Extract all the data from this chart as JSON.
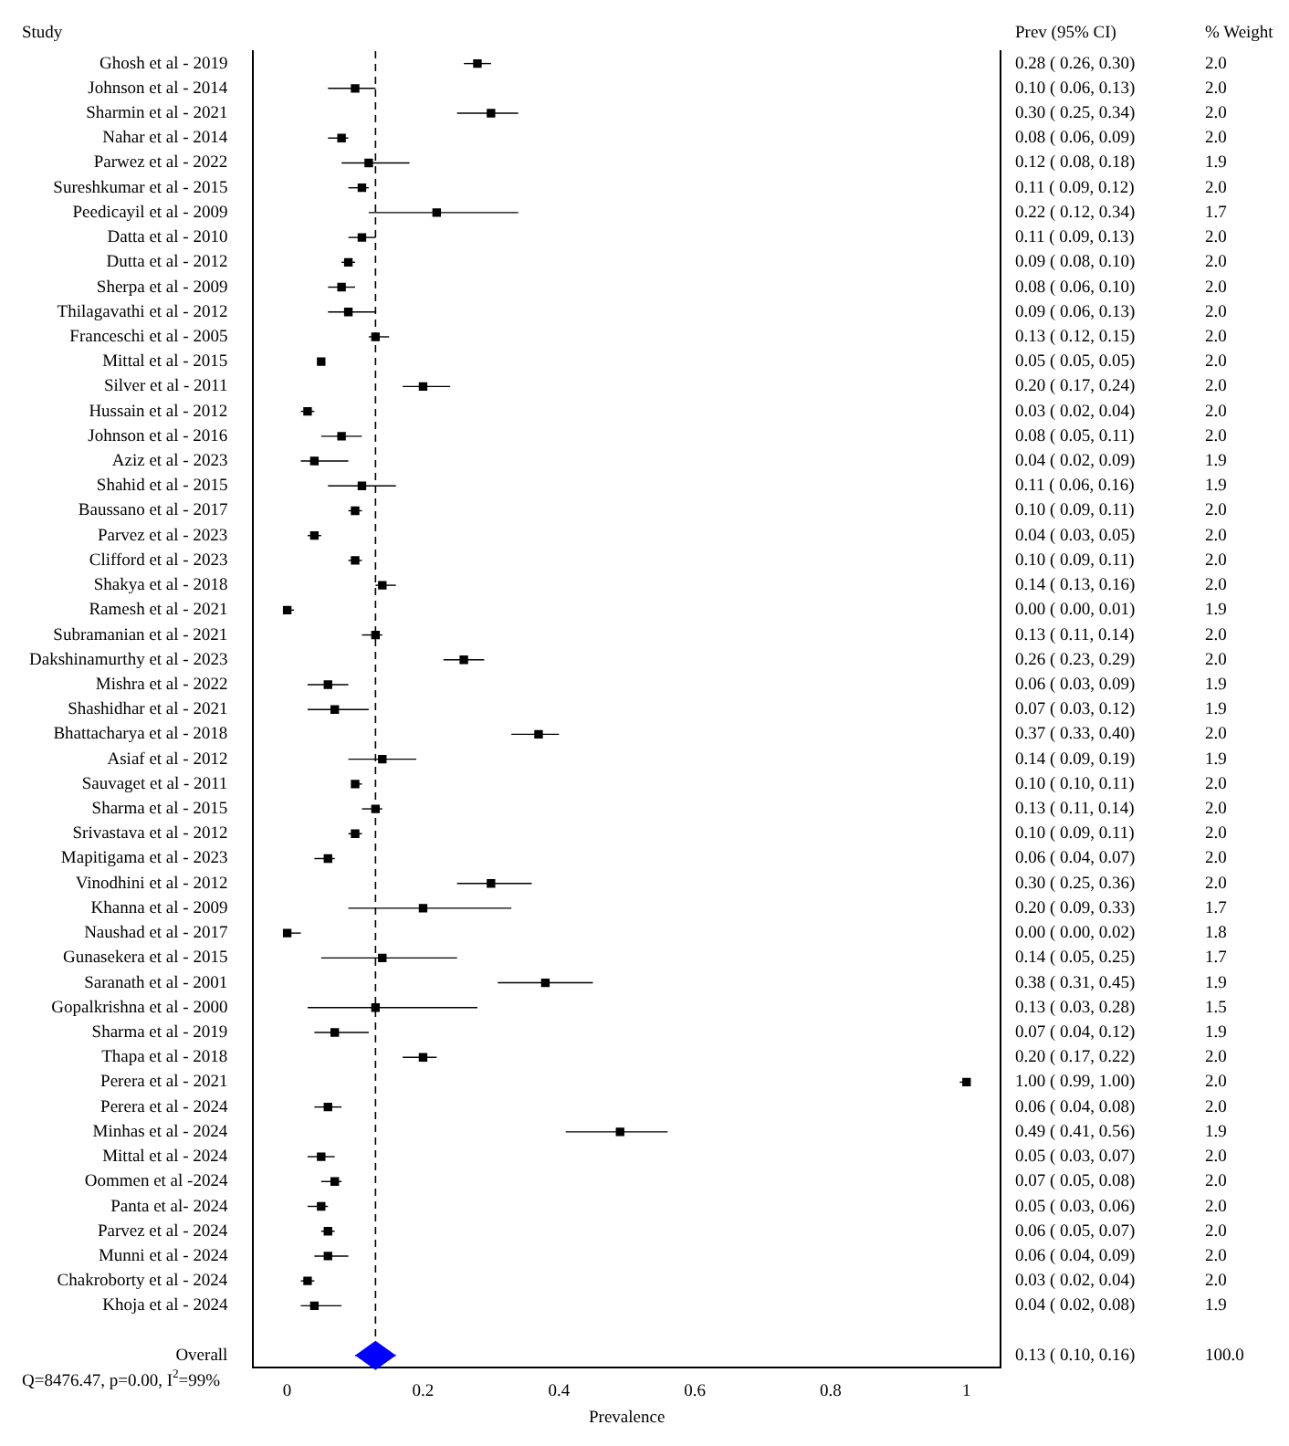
{
  "chart_data": {
    "type": "scatter",
    "orientation": "horizontal",
    "xlabel": "Prevalence",
    "ylabel": "Study",
    "categories": [
      "Ghosh et al - 2019",
      "Johnson et al - 2014",
      "Sharmin et al - 2021",
      "Nahar et al - 2014",
      "Parwez et al - 2022",
      "Sureshkumar et al - 2015",
      "Peedicayil et al - 2009",
      "Datta et al - 2010",
      "Dutta et al - 2012",
      "Sherpa et al - 2009",
      "Thilagavathi et al - 2012",
      "Franceschi et al - 2005",
      "Mittal et al - 2015",
      "Silver et al - 2011",
      "Hussain et al - 2012",
      "Johnson et al - 2016",
      "Aziz et al - 2023",
      "Shahid et al - 2015",
      "Baussano et al - 2017",
      "Parvez et al - 2023",
      "Clifford et al - 2023",
      "Shakya et al - 2018",
      "Ramesh et al - 2021",
      "Subramanian et al - 2021",
      "Dakshinamurthy et al - 2023",
      "Mishra et al - 2022",
      "Shashidhar et al - 2021",
      "Bhattacharya et al - 2018",
      "Asiaf et al - 2012",
      "Sauvaget et al - 2011",
      "Sharma et al - 2015",
      "Srivastava et al - 2012",
      "Mapitigama et al - 2023",
      "Vinodhini et al - 2012",
      "Khanna et al - 2009",
      "Naushad et al - 2017",
      "Gunasekera et al - 2015",
      "Saranath et al - 2001",
      "Gopalkrishna et al - 2000",
      "Sharma et al - 2019",
      "Thapa et al - 2018",
      "Perera et al - 2021",
      "Perera et al - 2024",
      "Minhas et al - 2024",
      "Mittal et al - 2024",
      "Oommen et al -2024",
      "Panta et al- 2024",
      "Parvez et al - 2024",
      "Munni et al - 2024",
      "Chakroborty et al - 2024",
      "Khoja et al - 2024",
      null,
      "Overall"
    ],
    "series": [
      {
        "name": "Prev (95% CI)",
        "color": "#000000",
        "marker": "square",
        "values": [
          0.28,
          0.1,
          0.3,
          0.08,
          0.12,
          0.11,
          0.22,
          0.11,
          0.09,
          0.08,
          0.09,
          0.13,
          0.05,
          0.2,
          0.03,
          0.08,
          0.04,
          0.11,
          0.1,
          0.04,
          0.1,
          0.14,
          0.0,
          0.13,
          0.26,
          0.06,
          0.07,
          0.37,
          0.14,
          0.1,
          0.13,
          0.1,
          0.06,
          0.3,
          0.2,
          0.0,
          0.14,
          0.38,
          0.13,
          0.07,
          0.2,
          1.0,
          0.06,
          0.49,
          0.05,
          0.07,
          0.05,
          0.06,
          0.06,
          0.03,
          0.04,
          null,
          null
        ],
        "errors": [
          [
            0.26,
            0.3
          ],
          [
            0.06,
            0.13
          ],
          [
            0.25,
            0.34
          ],
          [
            0.06,
            0.09
          ],
          [
            0.08,
            0.18
          ],
          [
            0.09,
            0.12
          ],
          [
            0.12,
            0.34
          ],
          [
            0.09,
            0.13
          ],
          [
            0.08,
            0.1
          ],
          [
            0.06,
            0.1
          ],
          [
            0.06,
            0.13
          ],
          [
            0.12,
            0.15
          ],
          [
            0.05,
            0.05
          ],
          [
            0.17,
            0.24
          ],
          [
            0.02,
            0.04
          ],
          [
            0.05,
            0.11
          ],
          [
            0.02,
            0.09
          ],
          [
            0.06,
            0.16
          ],
          [
            0.09,
            0.11
          ],
          [
            0.03,
            0.05
          ],
          [
            0.09,
            0.11
          ],
          [
            0.13,
            0.16
          ],
          [
            0.0,
            0.01
          ],
          [
            0.11,
            0.14
          ],
          [
            0.23,
            0.29
          ],
          [
            0.03,
            0.09
          ],
          [
            0.03,
            0.12
          ],
          [
            0.33,
            0.4
          ],
          [
            0.09,
            0.19
          ],
          [
            0.1,
            0.11
          ],
          [
            0.11,
            0.14
          ],
          [
            0.09,
            0.11
          ],
          [
            0.04,
            0.07
          ],
          [
            0.25,
            0.36
          ],
          [
            0.09,
            0.33
          ],
          [
            0.0,
            0.02
          ],
          [
            0.05,
            0.25
          ],
          [
            0.31,
            0.45
          ],
          [
            0.03,
            0.28
          ],
          [
            0.04,
            0.12
          ],
          [
            0.17,
            0.22
          ],
          [
            0.99,
            1.0
          ],
          [
            0.04,
            0.08
          ],
          [
            0.41,
            0.56
          ],
          [
            0.03,
            0.07
          ],
          [
            0.05,
            0.08
          ],
          [
            0.03,
            0.06
          ],
          [
            0.05,
            0.07
          ],
          [
            0.04,
            0.09
          ],
          [
            0.02,
            0.04
          ],
          [
            0.02,
            0.08
          ],
          null,
          null
        ],
        "value_labels": [
          "0.28 ( 0.26, 0.30)",
          "0.10 ( 0.06, 0.13)",
          "0.30 ( 0.25, 0.34)",
          "0.08 ( 0.06, 0.09)",
          "0.12 ( 0.08, 0.18)",
          "0.11 ( 0.09, 0.12)",
          "0.22 ( 0.12, 0.34)",
          "0.11 ( 0.09, 0.13)",
          "0.09 ( 0.08, 0.10)",
          "0.08 ( 0.06, 0.10)",
          "0.09 ( 0.06, 0.13)",
          "0.13 ( 0.12, 0.15)",
          "0.05 ( 0.05, 0.05)",
          "0.20 ( 0.17, 0.24)",
          "0.03 ( 0.02, 0.04)",
          "0.08 ( 0.05, 0.11)",
          "0.04 ( 0.02, 0.09)",
          "0.11 ( 0.06, 0.16)",
          "0.10 ( 0.09, 0.11)",
          "0.04 ( 0.03, 0.05)",
          "0.10 ( 0.09, 0.11)",
          "0.14 ( 0.13, 0.16)",
          "0.00 ( 0.00, 0.01)",
          "0.13 ( 0.11, 0.14)",
          "0.26 ( 0.23, 0.29)",
          "0.06 ( 0.03, 0.09)",
          "0.07 ( 0.03, 0.12)",
          "0.37 ( 0.33, 0.40)",
          "0.14 ( 0.09, 0.19)",
          "0.10 ( 0.10, 0.11)",
          "0.13 ( 0.11, 0.14)",
          "0.10 ( 0.09, 0.11)",
          "0.06 ( 0.04, 0.07)",
          "0.30 ( 0.25, 0.36)",
          "0.20 ( 0.09, 0.33)",
          "0.00 ( 0.00, 0.02)",
          "0.14 ( 0.05, 0.25)",
          "0.38 ( 0.31, 0.45)",
          "0.13 ( 0.03, 0.28)",
          "0.07 ( 0.04, 0.12)",
          "0.20 ( 0.17, 0.22)",
          "1.00 ( 0.99, 1.00)",
          "0.06 ( 0.04, 0.08)",
          "0.49 ( 0.41, 0.56)",
          "0.05 ( 0.03, 0.07)",
          "0.07 ( 0.05, 0.08)",
          "0.05 ( 0.03, 0.06)",
          "0.06 ( 0.05, 0.07)",
          "0.06 ( 0.04, 0.09)",
          "0.03 ( 0.02, 0.04)",
          "0.04 ( 0.02, 0.08)",
          null,
          "0.13 ( 0.10, 0.16)"
        ]
      },
      {
        "color": "#0000ff",
        "marker": "diamond",
        "values": [
          null,
          null,
          null,
          null,
          null,
          null,
          null,
          null,
          null,
          null,
          null,
          null,
          null,
          null,
          null,
          null,
          null,
          null,
          null,
          null,
          null,
          null,
          null,
          null,
          null,
          null,
          null,
          null,
          null,
          null,
          null,
          null,
          null,
          null,
          null,
          null,
          null,
          null,
          null,
          null,
          null,
          null,
          null,
          null,
          null,
          null,
          null,
          null,
          null,
          null,
          null,
          null,
          0.13
        ],
        "errors": [
          null,
          null,
          null,
          null,
          null,
          null,
          null,
          null,
          null,
          null,
          null,
          null,
          null,
          null,
          null,
          null,
          null,
          null,
          null,
          null,
          null,
          null,
          null,
          null,
          null,
          null,
          null,
          null,
          null,
          null,
          null,
          null,
          null,
          null,
          null,
          null,
          null,
          null,
          null,
          null,
          null,
          null,
          null,
          null,
          null,
          null,
          null,
          null,
          null,
          null,
          null,
          null,
          [
            0.1,
            0.16
          ]
        ]
      },
      {
        "type": "other",
        "name": "% Weight",
        "values": [
          null,
          null,
          null,
          null,
          null,
          null,
          null,
          null,
          null,
          null,
          null,
          null,
          null,
          null,
          null,
          null,
          null,
          null,
          null,
          null,
          null,
          null,
          null,
          null,
          null,
          null,
          null,
          null,
          null,
          null,
          null,
          null,
          null,
          null,
          null,
          null,
          null,
          null,
          null,
          null,
          null,
          null,
          null,
          null,
          null,
          null,
          null,
          null,
          null,
          null,
          null,
          null,
          null
        ],
        "value_labels": [
          "2.0",
          "2.0",
          "2.0",
          "2.0",
          "1.9",
          "2.0",
          "1.7",
          "2.0",
          "2.0",
          "2.0",
          "2.0",
          "2.0",
          "2.0",
          "2.0",
          "2.0",
          "2.0",
          "1.9",
          "1.9",
          "2.0",
          "2.0",
          "2.0",
          "2.0",
          "1.9",
          "2.0",
          "2.0",
          "1.9",
          "1.9",
          "2.0",
          "1.9",
          "2.0",
          "2.0",
          "2.0",
          "2.0",
          "2.0",
          "1.7",
          "1.8",
          "1.7",
          "1.9",
          "1.5",
          "1.9",
          "2.0",
          "2.0",
          "2.0",
          "1.9",
          "2.0",
          "2.0",
          "2.0",
          "2.0",
          "2.0",
          "2.0",
          "1.9",
          null,
          "100.0"
        ]
      }
    ],
    "xlim": [
      -0.05,
      1.05
    ],
    "xticks": [
      0,
      0.2,
      0.4,
      0.6,
      0.8,
      1
    ],
    "ref_lines": [
      {
        "axis": "x",
        "value": 0.13,
        "color": "#000000",
        "line_style": "dashed"
      }
    ],
    "annotations": [
      "Q=8476.47, p=0.00, I$^{2}$=99%"
    ],
    "grid": false,
    "legend": false
  }
}
